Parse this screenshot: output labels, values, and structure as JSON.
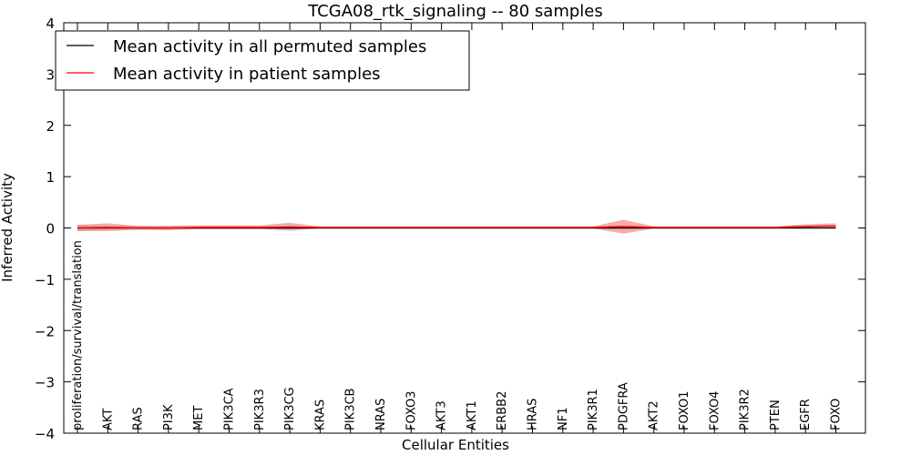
{
  "chart_data": {
    "type": "line",
    "title": "TCGA08_rtk_signaling -- 80 samples",
    "xlabel": "Cellular Entities",
    "ylabel": "Inferred Activity",
    "ylim": [
      -4,
      4
    ],
    "yticks": [
      -4,
      -3,
      -2,
      -1,
      0,
      1,
      2,
      3,
      4
    ],
    "ytick_labels": [
      "−4",
      "−3",
      "−2",
      "−1",
      "0",
      "1",
      "2",
      "3",
      "4"
    ],
    "grid": false,
    "legend_position": "top-left",
    "categories": [
      "proliferation/survival/translation",
      "AKT",
      "RAS",
      "PI3K",
      "MET",
      "PIK3CA",
      "PIK3R3",
      "PIK3CG",
      "KRAS",
      "PIK3CB",
      "NRAS",
      "FOXO3",
      "AKT3",
      "AKT1",
      "ERBB2",
      "HRAS",
      "NF1",
      "PIK3R1",
      "PDGFRA",
      "AKT2",
      "FOXO1",
      "FOXO4",
      "PIK3R2",
      "PTEN",
      "EGFR",
      "FOXO"
    ],
    "series": [
      {
        "name": "Mean activity in all permuted samples",
        "color": "#000000",
        "values": [
          0,
          0,
          0,
          0,
          0,
          0,
          0,
          0,
          0,
          0,
          0,
          0,
          0,
          0,
          0,
          0,
          0,
          0,
          0,
          0,
          0,
          0,
          0,
          0,
          0,
          0
        ],
        "band_lower": [
          -0.06,
          -0.04,
          -0.04,
          -0.04,
          -0.03,
          -0.03,
          -0.03,
          -0.03,
          -0.02,
          -0.02,
          -0.02,
          -0.02,
          -0.02,
          -0.02,
          -0.02,
          -0.02,
          -0.02,
          -0.02,
          -0.02,
          -0.02,
          -0.02,
          -0.02,
          -0.02,
          -0.02,
          -0.02,
          -0.02
        ],
        "band_upper": [
          0.06,
          0.04,
          0.04,
          0.04,
          0.03,
          0.03,
          0.03,
          0.03,
          0.02,
          0.02,
          0.02,
          0.02,
          0.02,
          0.02,
          0.02,
          0.02,
          0.02,
          0.02,
          0.02,
          0.02,
          0.02,
          0.02,
          0.02,
          0.02,
          0.02,
          0.02
        ],
        "band_color": "#999999"
      },
      {
        "name": "Mean activity in patient samples",
        "color": "#ff0000",
        "values": [
          0,
          0.01,
          0,
          0,
          0.01,
          0.01,
          0.01,
          0.02,
          0.01,
          0.01,
          0.01,
          0.01,
          0.01,
          0.01,
          0.01,
          0.01,
          0.01,
          0.01,
          0.03,
          0.01,
          0.01,
          0.01,
          0.01,
          0.01,
          0.03,
          0.04
        ],
        "band_lower": [
          -0.06,
          -0.06,
          -0.03,
          -0.04,
          -0.02,
          -0.02,
          -0.02,
          -0.05,
          -0.01,
          -0.01,
          -0.01,
          -0.01,
          -0.01,
          -0.01,
          -0.01,
          -0.01,
          -0.01,
          -0.01,
          -0.11,
          -0.01,
          -0.01,
          -0.01,
          -0.01,
          -0.01,
          -0.01,
          -0.01
        ],
        "band_upper": [
          0.06,
          0.09,
          0.04,
          0.04,
          0.05,
          0.05,
          0.05,
          0.1,
          0.03,
          0.03,
          0.03,
          0.03,
          0.03,
          0.03,
          0.03,
          0.03,
          0.03,
          0.03,
          0.16,
          0.03,
          0.03,
          0.03,
          0.03,
          0.03,
          0.07,
          0.09
        ],
        "band_color": "#e8464a"
      }
    ]
  }
}
